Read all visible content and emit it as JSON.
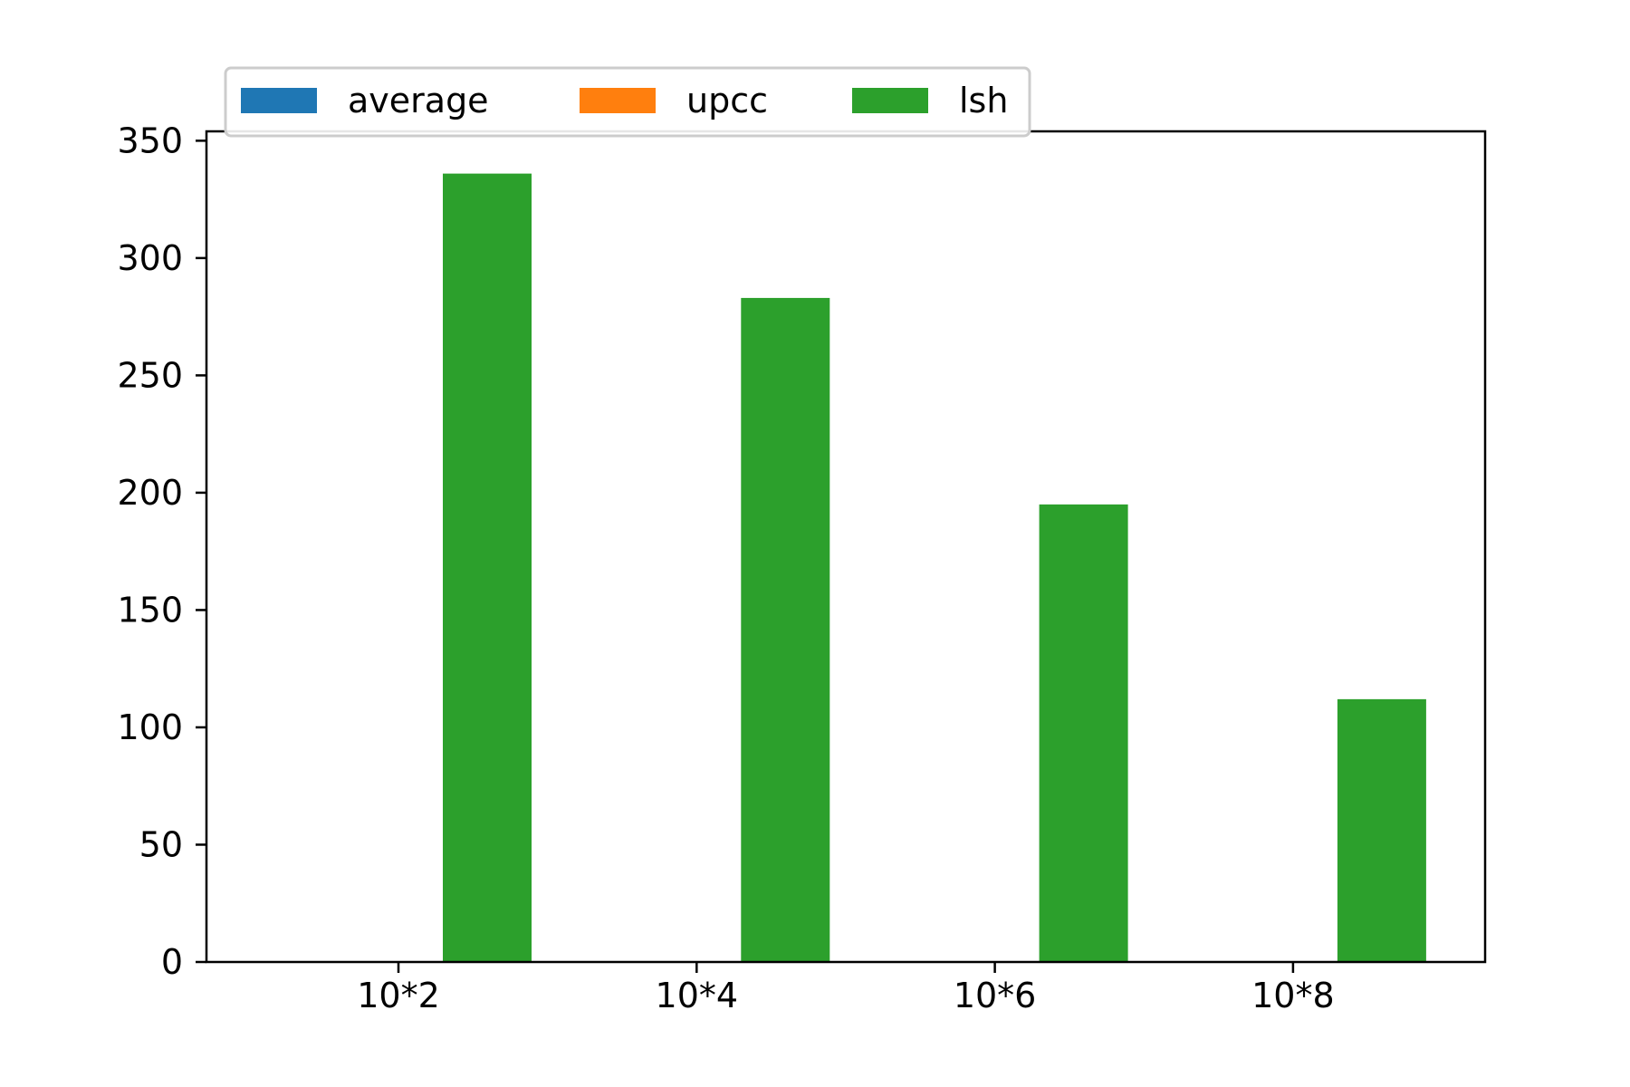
{
  "chart_data": {
    "type": "bar",
    "title": "",
    "xlabel": "",
    "ylabel": "",
    "categories": [
      "10*2",
      "10*4",
      "10*6",
      "10*8"
    ],
    "series": [
      {
        "name": "average",
        "color": "#1f77b4",
        "values": [
          0,
          0,
          0,
          0
        ]
      },
      {
        "name": "upcc",
        "color": "#ff7f0e",
        "values": [
          0,
          0,
          0,
          0
        ]
      },
      {
        "name": "lsh",
        "color": "#2ca02c",
        "values": [
          336,
          283,
          195,
          112
        ]
      }
    ],
    "ylim": [
      0,
      354
    ],
    "yticks": [
      0,
      50,
      100,
      150,
      200,
      250,
      300,
      350
    ],
    "grid": false,
    "legend_position": "top-left"
  }
}
